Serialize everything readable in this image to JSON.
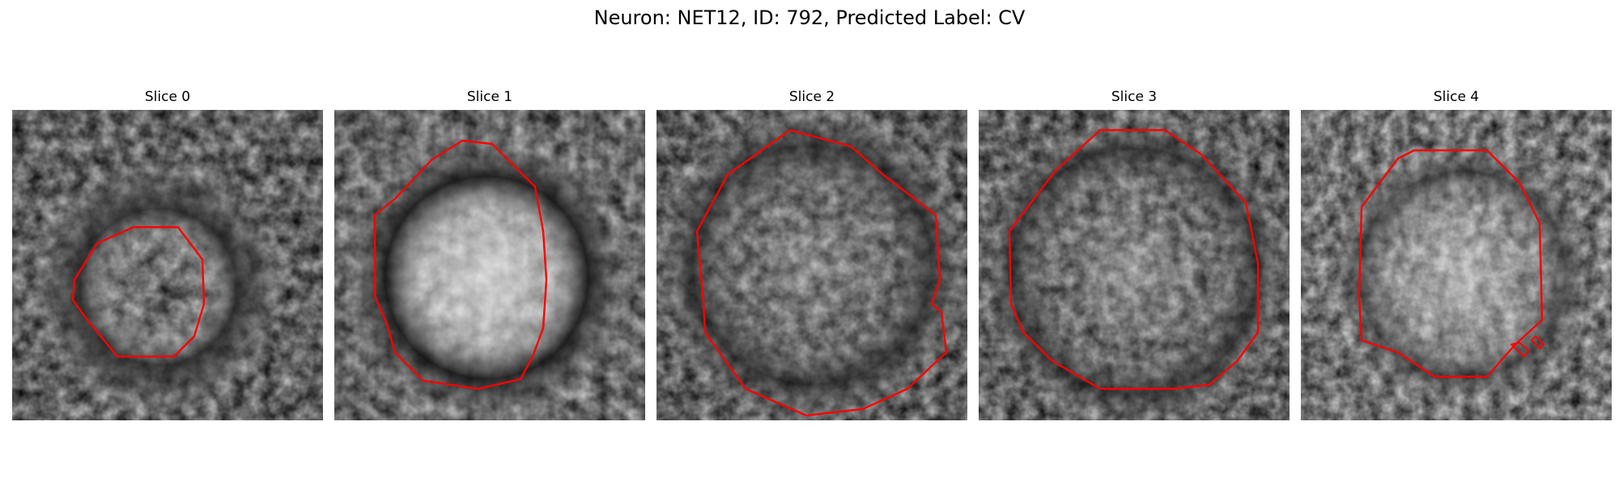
{
  "figure": {
    "title": "Neuron: NET12, ID: 792, Predicted Label: CV"
  },
  "slices": [
    {
      "label": "Slice 0"
    },
    {
      "label": "Slice 1"
    },
    {
      "label": "Slice 2"
    },
    {
      "label": "Slice 3"
    },
    {
      "label": "Slice 4"
    }
  ],
  "colors": {
    "contour": "#ff0000",
    "background": "#ffffff"
  }
}
